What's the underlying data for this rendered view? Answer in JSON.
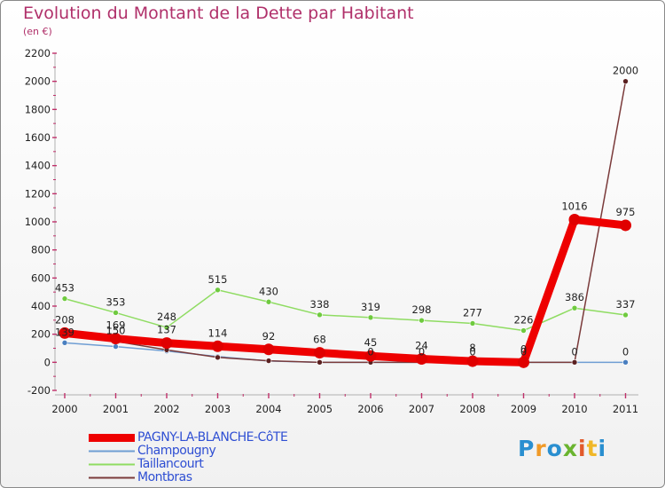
{
  "title": "Evolution du Montant de la Dette par Habitant",
  "subtitle": "(en €)",
  "chart_data": {
    "type": "line",
    "categories": [
      "2000",
      "2001",
      "2002",
      "2003",
      "2004",
      "2005",
      "2006",
      "2007",
      "2008",
      "2009",
      "2010",
      "2011"
    ],
    "ylim": [
      -200,
      2200
    ],
    "yticks": [
      -200,
      0,
      200,
      400,
      600,
      800,
      1000,
      1200,
      1400,
      1600,
      1800,
      2000,
      2200
    ],
    "series": [
      {
        "name": "PAGNY-LA-BLANCHE-CôTE",
        "color": "#ee0000",
        "width": 9,
        "marker": "#e00000",
        "values": [
          208,
          169,
          137,
          114,
          92,
          68,
          45,
          24,
          8,
          0,
          1016,
          975
        ],
        "labels": [
          "208",
          "169",
          "137",
          "114",
          "92",
          "68",
          "45",
          "24",
          "8",
          "0",
          "1016",
          "975"
        ],
        "label_pos": [
          "above",
          "above",
          "above",
          "above",
          "above",
          "above",
          "above",
          "above",
          "above",
          "above",
          "above",
          "above"
        ]
      },
      {
        "name": "Champougny",
        "color": "#6f9ed3",
        "width": 1.5,
        "marker": "#4a7fc0",
        "values": [
          139,
          112,
          80,
          41,
          9,
          0,
          0,
          0,
          0,
          0,
          0,
          0
        ],
        "labels": [
          "139",
          "",
          "",
          "",
          "",
          "",
          "",
          "",
          "",
          "",
          "",
          "0"
        ],
        "label_pos": [
          "above",
          "above",
          "above",
          "above",
          "above",
          "above",
          "above",
          "above",
          "above",
          "above",
          "above",
          "above"
        ]
      },
      {
        "name": "Taillancourt",
        "color": "#8fdc62",
        "width": 1.5,
        "marker": "#6fca3f",
        "values": [
          453,
          353,
          248,
          515,
          430,
          338,
          319,
          298,
          277,
          226,
          386,
          337
        ],
        "labels": [
          "453",
          "353",
          "248",
          "515",
          "430",
          "338",
          "319",
          "298",
          "277",
          "226",
          "386",
          "337"
        ],
        "label_pos": [
          "above",
          "above",
          "above",
          "above",
          "above",
          "above",
          "above",
          "above",
          "above",
          "above",
          "above",
          "above"
        ]
      },
      {
        "name": "Montbras",
        "color": "#7a3a3a",
        "width": 1.5,
        "marker": "#5a2020",
        "values": [
          193,
          150,
          88,
          35,
          11,
          0,
          0,
          0,
          0,
          0,
          0,
          2000
        ],
        "labels": [
          "",
          "150",
          "",
          "",
          "",
          "",
          "0",
          "0",
          "0",
          "0",
          "0",
          "2000"
        ],
        "label_pos": [
          "above",
          "above",
          "above",
          "above",
          "above",
          "above",
          "above",
          "above",
          "above",
          "above",
          "above",
          "above"
        ]
      }
    ]
  },
  "legend": [
    {
      "label": "PAGNY-LA-BLANCHE-CôTE",
      "color": "#ee0000",
      "width": 9
    },
    {
      "label": "Champougny",
      "color": "#6f9ed3",
      "width": 2
    },
    {
      "label": "Taillancourt",
      "color": "#8fdc62",
      "width": 2
    },
    {
      "label": "Montbras",
      "color": "#7a3a3a",
      "width": 2
    }
  ],
  "logo": {
    "p": "P",
    "r": "r",
    "o": "o",
    "x": "x",
    "i1": "i",
    "t": "t",
    "i2": "i"
  }
}
